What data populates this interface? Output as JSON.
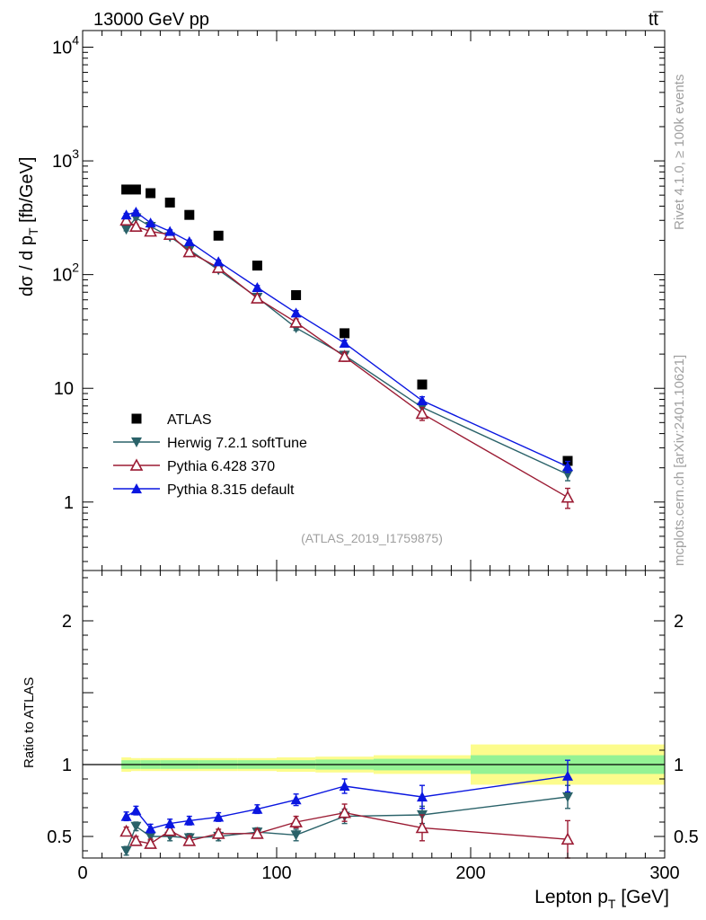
{
  "header": {
    "left": "13000 GeV pp",
    "process_base": "tt",
    "process_bar": "¯"
  },
  "side_labels": {
    "rivet": "Rivet 4.1.0, ≥ 100k events",
    "mcplots": "mcplots.cern.ch [arXiv:2401.10621]"
  },
  "colors": {
    "atlas": "#000000",
    "herwig": "#2a6269",
    "pythia6": "#9b1b33",
    "pythia8": "#0a16e0",
    "band_inner": "#94f294",
    "band_outer": "#fcfc8c",
    "caption": "#a0a0a0"
  },
  "chart_data": [
    {
      "type": "scatter",
      "title": "",
      "caption": "(ATLAS_2019_I1759875)",
      "xlabel": "Lepton p_T [GeV]",
      "ylabel": "dσ / d p_T [fb/GeV]",
      "yscale": "log",
      "xlim": [
        0,
        300
      ],
      "ylim": [
        0.25,
        14000
      ],
      "x_ticks": [
        0,
        100,
        200,
        300
      ],
      "y_ticks": [
        {
          "value": 1,
          "base": "1",
          "exp": ""
        },
        {
          "value": 10,
          "base": "10",
          "exp": ""
        },
        {
          "value": 100,
          "base": "10",
          "exp": "2"
        },
        {
          "value": 1000,
          "base": "10",
          "exp": "3"
        },
        {
          "value": 10000,
          "base": "10",
          "exp": "4"
        }
      ],
      "legend_position": "bottom-left",
      "series": [
        {
          "name": "ATLAS",
          "marker": "square",
          "line": false,
          "x": [
            22.5,
            27.5,
            35,
            45,
            55,
            70,
            90,
            110,
            135,
            175,
            250
          ],
          "x_halfwidth": [
            2.5,
            2.5,
            5,
            5,
            5,
            10,
            10,
            10,
            15,
            25,
            50
          ],
          "values": [
            560,
            560,
            520,
            430,
            335,
            220,
            120,
            66,
            30.5,
            10.8,
            2.3
          ],
          "err": [
            0.03,
            0.03,
            0.03,
            0.03,
            0.03,
            0.03,
            0.03,
            0.03,
            0.04,
            0.05,
            0.07
          ]
        },
        {
          "name": "Herwig 7.2.1 softTune",
          "marker": "triangle-down",
          "line": true,
          "x": [
            22.5,
            27.5,
            35,
            45,
            55,
            70,
            90,
            110,
            135,
            175,
            250
          ],
          "values": [
            250,
            315,
            265,
            215,
            165,
            110,
            63,
            34,
            19.5,
            6.8,
            1.75
          ],
          "err": [
            0.03,
            0.03,
            0.03,
            0.03,
            0.03,
            0.03,
            0.04,
            0.05,
            0.06,
            0.09,
            0.12
          ]
        },
        {
          "name": "Pythia 6.428 370",
          "marker": "triangle-up-open",
          "line": true,
          "x": [
            22.5,
            27.5,
            35,
            45,
            55,
            70,
            90,
            110,
            135,
            175,
            250
          ],
          "values": [
            300,
            265,
            240,
            225,
            158,
            115,
            62,
            38,
            19,
            6,
            1.1
          ],
          "err": [
            0.04,
            0.04,
            0.04,
            0.04,
            0.05,
            0.05,
            0.06,
            0.07,
            0.09,
            0.13,
            0.2
          ]
        },
        {
          "name": "Pythia 8.315 default",
          "marker": "triangle-up",
          "line": true,
          "x": [
            22.5,
            27.5,
            35,
            45,
            55,
            70,
            90,
            110,
            135,
            175,
            250
          ],
          "values": [
            335,
            355,
            285,
            240,
            195,
            130,
            77,
            46,
            25,
            7.8,
            2.05
          ],
          "err": [
            0.03,
            0.03,
            0.03,
            0.03,
            0.03,
            0.03,
            0.04,
            0.05,
            0.06,
            0.08,
            0.11
          ]
        }
      ]
    },
    {
      "type": "line",
      "title": "",
      "xlabel": "Lepton p_T [GeV]",
      "ylabel": "Ratio to ATLAS",
      "xlim": [
        0,
        300
      ],
      "ylim": [
        0.35,
        2.35
      ],
      "x_ticks": [
        0,
        100,
        200,
        300
      ],
      "y_ticks": [
        0.5,
        1,
        2
      ],
      "reference": 1,
      "bands": [
        {
          "x0": 20,
          "x1": 25,
          "inner": 0.03,
          "outer": 0.05
        },
        {
          "x0": 25,
          "x1": 30,
          "inner": 0.03,
          "outer": 0.045
        },
        {
          "x0": 30,
          "x1": 40,
          "inner": 0.03,
          "outer": 0.045
        },
        {
          "x0": 40,
          "x1": 50,
          "inner": 0.03,
          "outer": 0.045
        },
        {
          "x0": 50,
          "x1": 60,
          "inner": 0.03,
          "outer": 0.045
        },
        {
          "x0": 60,
          "x1": 80,
          "inner": 0.03,
          "outer": 0.045
        },
        {
          "x0": 80,
          "x1": 100,
          "inner": 0.03,
          "outer": 0.045
        },
        {
          "x0": 100,
          "x1": 120,
          "inner": 0.03,
          "outer": 0.05
        },
        {
          "x0": 120,
          "x1": 150,
          "inner": 0.035,
          "outer": 0.055
        },
        {
          "x0": 150,
          "x1": 200,
          "inner": 0.04,
          "outer": 0.065
        },
        {
          "x0": 200,
          "x1": 300,
          "inner": 0.065,
          "outer": 0.14
        }
      ],
      "series": [
        {
          "name": "Herwig 7.2.1 softTune",
          "marker": "triangle-down",
          "x": [
            22.5,
            27.5,
            35,
            45,
            55,
            70,
            90,
            110,
            135,
            175,
            250
          ],
          "values": [
            0.4,
            0.57,
            0.5,
            0.5,
            0.49,
            0.5,
            0.53,
            0.51,
            0.64,
            0.65,
            0.775
          ],
          "err": [
            0.03,
            0.03,
            0.03,
            0.03,
            0.03,
            0.03,
            0.03,
            0.04,
            0.05,
            0.06,
            0.08
          ]
        },
        {
          "name": "Pythia 6.428 370",
          "marker": "triangle-up-open",
          "x": [
            22.5,
            27.5,
            35,
            45,
            55,
            70,
            90,
            110,
            135,
            175,
            250
          ],
          "values": [
            0.535,
            0.47,
            0.45,
            0.54,
            0.47,
            0.52,
            0.52,
            0.6,
            0.665,
            0.56,
            0.48
          ],
          "err": [
            0.03,
            0.03,
            0.03,
            0.03,
            0.03,
            0.03,
            0.03,
            0.04,
            0.06,
            0.09,
            0.13
          ]
        },
        {
          "name": "Pythia 8.315 default",
          "marker": "triangle-up",
          "x": [
            22.5,
            27.5,
            35,
            45,
            55,
            70,
            90,
            110,
            135,
            175,
            250
          ],
          "values": [
            0.64,
            0.68,
            0.555,
            0.59,
            0.61,
            0.635,
            0.69,
            0.755,
            0.85,
            0.775,
            0.92
          ],
          "err": [
            0.03,
            0.03,
            0.03,
            0.03,
            0.03,
            0.03,
            0.03,
            0.04,
            0.05,
            0.08,
            0.11
          ]
        }
      ]
    }
  ]
}
